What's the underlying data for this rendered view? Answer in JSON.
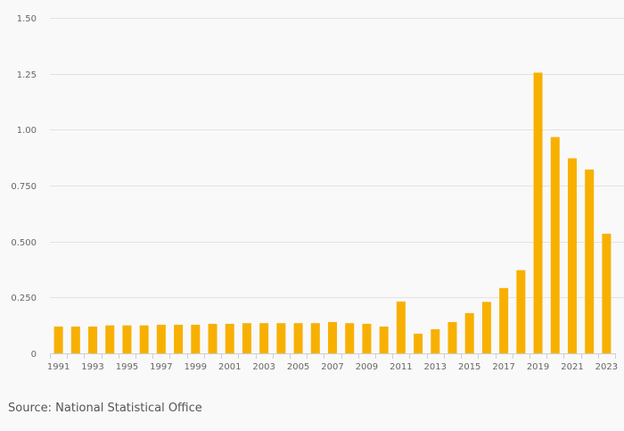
{
  "chart_data": {
    "type": "bar",
    "title": "",
    "xlabel": "",
    "ylabel": "",
    "ylim": [
      0,
      1.5
    ],
    "grid": true,
    "bar_color": "#f8b000",
    "categories": [
      "1991",
      "1992",
      "1993",
      "1994",
      "1995",
      "1996",
      "1997",
      "1998",
      "1999",
      "2000",
      "2001",
      "2002",
      "2003",
      "2004",
      "2005",
      "2006",
      "2007",
      "2008",
      "2009",
      "2010",
      "2011",
      "2012",
      "2013",
      "2014",
      "2015",
      "2016",
      "2017",
      "2018",
      "2019",
      "2020",
      "2021",
      "2022",
      "2023"
    ],
    "values": [
      0.12,
      0.12,
      0.12,
      0.125,
      0.125,
      0.125,
      0.128,
      0.128,
      0.128,
      0.132,
      0.132,
      0.135,
      0.135,
      0.135,
      0.135,
      0.135,
      0.14,
      0.135,
      0.132,
      0.12,
      0.232,
      0.088,
      0.108,
      0.14,
      0.18,
      0.23,
      0.292,
      0.372,
      1.255,
      0.967,
      0.872,
      0.822,
      0.535
    ],
    "x_tick_labels": [
      "1991",
      "1993",
      "1995",
      "1997",
      "1999",
      "2001",
      "2003",
      "2005",
      "2007",
      "2009",
      "2011",
      "2013",
      "2015",
      "2017",
      "2019",
      "2021",
      "2023"
    ],
    "y_ticks": [
      0,
      0.25,
      0.5,
      0.75,
      1.0,
      1.25,
      1.5
    ],
    "y_tick_labels": [
      "0",
      "0.250",
      "0.500",
      "0.750",
      "1.00",
      "1.25",
      "1.50"
    ]
  },
  "source_note": "Source: National Statistical Office"
}
